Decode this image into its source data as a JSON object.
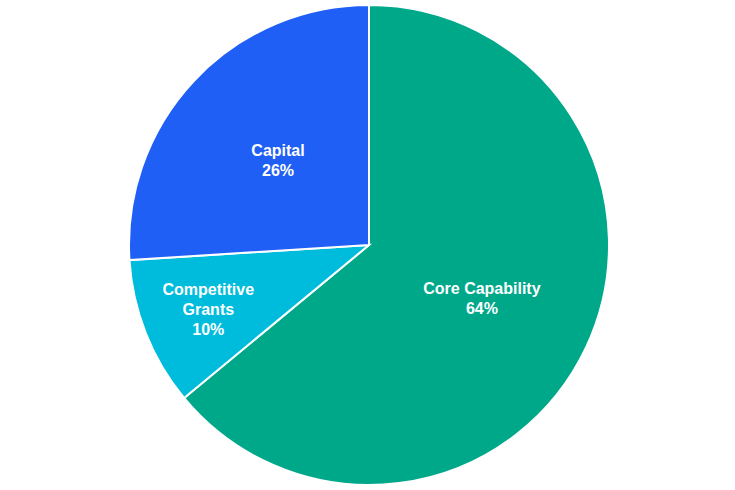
{
  "chart_data": {
    "type": "pie",
    "categories": [
      "Core Capability",
      "Competitive Grants",
      "Capital"
    ],
    "values": [
      64,
      10,
      26
    ],
    "value_labels": [
      "64%",
      "10%",
      "26%"
    ],
    "colors": [
      "#00a88a",
      "#00bcdc",
      "#1f5ff5"
    ],
    "data_labels": true
  }
}
